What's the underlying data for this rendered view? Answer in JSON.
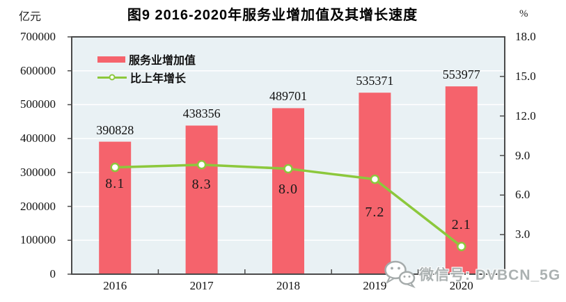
{
  "figure": {
    "title": "图9  2016-2020年服务业增加值及其增长速度",
    "left_axis_unit": "亿元",
    "right_axis_unit": "%"
  },
  "legend": {
    "items": [
      {
        "label": "服务业增加值",
        "marker": "bar-swatch",
        "color": "#f5636c"
      },
      {
        "label": "比上年增长",
        "marker": "line-swatch",
        "color": "#8cc83c"
      }
    ]
  },
  "watermark": {
    "icon": "wechat-icon",
    "text": "微信号: DVBCN_5G"
  },
  "chart_data": {
    "type": "bar",
    "combo": "bar+line",
    "title": "图9  2016-2020年服务业增加值及其增长速度",
    "categories": [
      "2016",
      "2017",
      "2018",
      "2019",
      "2020"
    ],
    "series": [
      {
        "name": "服务业增加值",
        "type": "bar",
        "axis": "left",
        "unit": "亿元",
        "values": [
          390828,
          438356,
          489701,
          535371,
          553977
        ],
        "labels": [
          "390828",
          "438356",
          "489701",
          "535371",
          "553977"
        ],
        "color": "#f5636c"
      },
      {
        "name": "比上年增长",
        "type": "line",
        "axis": "right",
        "unit": "%",
        "values": [
          8.1,
          8.3,
          8.0,
          7.2,
          2.1
        ],
        "labels": [
          "8.1",
          "8.3",
          "8.0",
          "7.2",
          "2.1"
        ],
        "color": "#8cc83c",
        "marker_fill": "#ffffff"
      }
    ],
    "left_axis": {
      "unit": "亿元",
      "min": 0,
      "max": 700000,
      "tick_step": 100000,
      "tick_labels": [
        "700000",
        "600000",
        "500000",
        "400000",
        "300000",
        "200000",
        "100000",
        "0"
      ]
    },
    "right_axis": {
      "unit": "%",
      "min": 0,
      "max": 18,
      "tick_step": 3,
      "tick_labels": [
        "18.0",
        "15.0",
        "12.0",
        "9.0",
        "6.0",
        "3.0"
      ]
    },
    "grid": true,
    "plot_background": "#e9f1f4",
    "grid_color": "#ffffff",
    "frame_color": "#4a4a4a",
    "legend_position": "top-left-inside",
    "growth_label_dy": [
      12,
      17,
      19,
      36,
      -42
    ]
  }
}
